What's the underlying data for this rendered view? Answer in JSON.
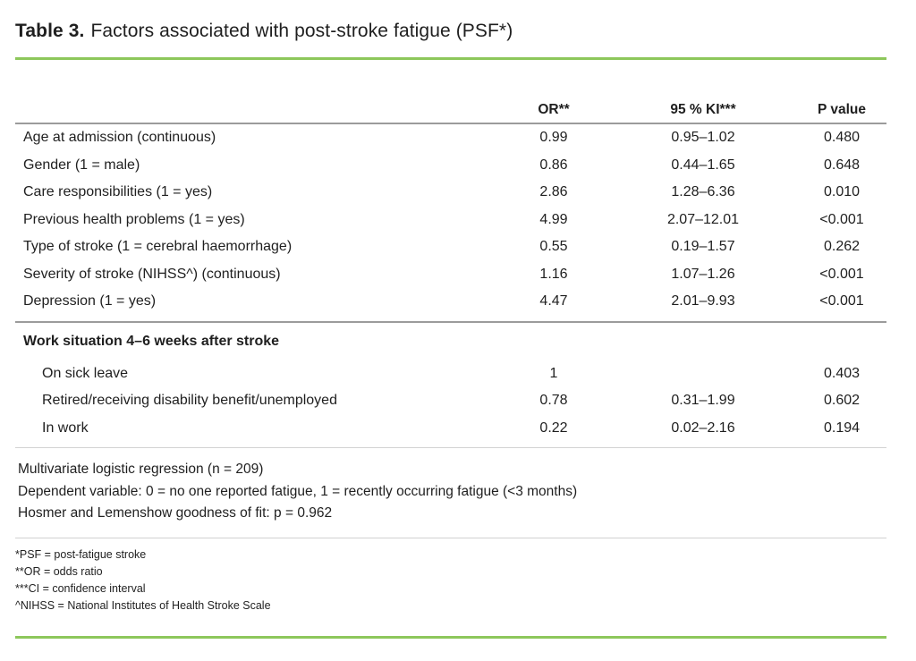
{
  "colors": {
    "accent_green": "#8DC75B",
    "rule_gray": "#9b9b9b",
    "rule_light": "#d2d2d2",
    "text": "#1f1f1f"
  },
  "title": {
    "label": "Table 3.",
    "text": "Factors associated with post-stroke fatigue (PSF*)"
  },
  "table": {
    "columns": {
      "or": "OR**",
      "ki": "95 % KI***",
      "p": "P value"
    },
    "rows": [
      {
        "label": "Age at admission (continuous)",
        "or": "0.99",
        "ki": "0.95–1.02",
        "p": "0.480"
      },
      {
        "label": "Gender (1 = male)",
        "or": "0.86",
        "ki": "0.44–1.65",
        "p": "0.648"
      },
      {
        "label": "Care responsibilities (1 = yes)",
        "or": "2.86",
        "ki": "1.28–6.36",
        "p": "0.010"
      },
      {
        "label": "Previous health problems (1 = yes)",
        "or": "4.99",
        "ki": "2.07–12.01",
        "p": "<0.001"
      },
      {
        "label": "Type of stroke (1 = cerebral haemorrhage)",
        "or": "0.55",
        "ki": "0.19–1.57",
        "p": "0.262"
      },
      {
        "label": "Severity of stroke (NIHSS^) (continuous)",
        "or": "1.16",
        "ki": "1.07–1.26",
        "p": "<0.001"
      },
      {
        "label": "Depression (1 = yes)",
        "or": "4.47",
        "ki": "2.01–9.93",
        "p": "<0.001"
      }
    ],
    "section": {
      "header": "Work situation 4–6 weeks after stroke",
      "rows": [
        {
          "label": "On sick leave",
          "or": "1",
          "ki": "",
          "p": "0.403"
        },
        {
          "label": "Retired/receiving disability benefit/unemployed",
          "or": "0.78",
          "ki": "0.31–1.99",
          "p": "0.602"
        },
        {
          "label": "In work",
          "or": "0.22",
          "ki": "0.02–2.16",
          "p": "0.194"
        }
      ]
    }
  },
  "notes": [
    "Multivariate logistic regression (n = 209)",
    "Dependent variable: 0 = no one reported fatigue, 1 = recently occurring fatigue (<3 months)",
    "Hosmer and Lemenshow goodness of fit: p = 0.962"
  ],
  "footnotes": [
    "*PSF = post-fatigue stroke",
    "**OR = odds ratio",
    "***CI = confidence interval",
    "^NIHSS = National Institutes of Health Stroke Scale"
  ]
}
